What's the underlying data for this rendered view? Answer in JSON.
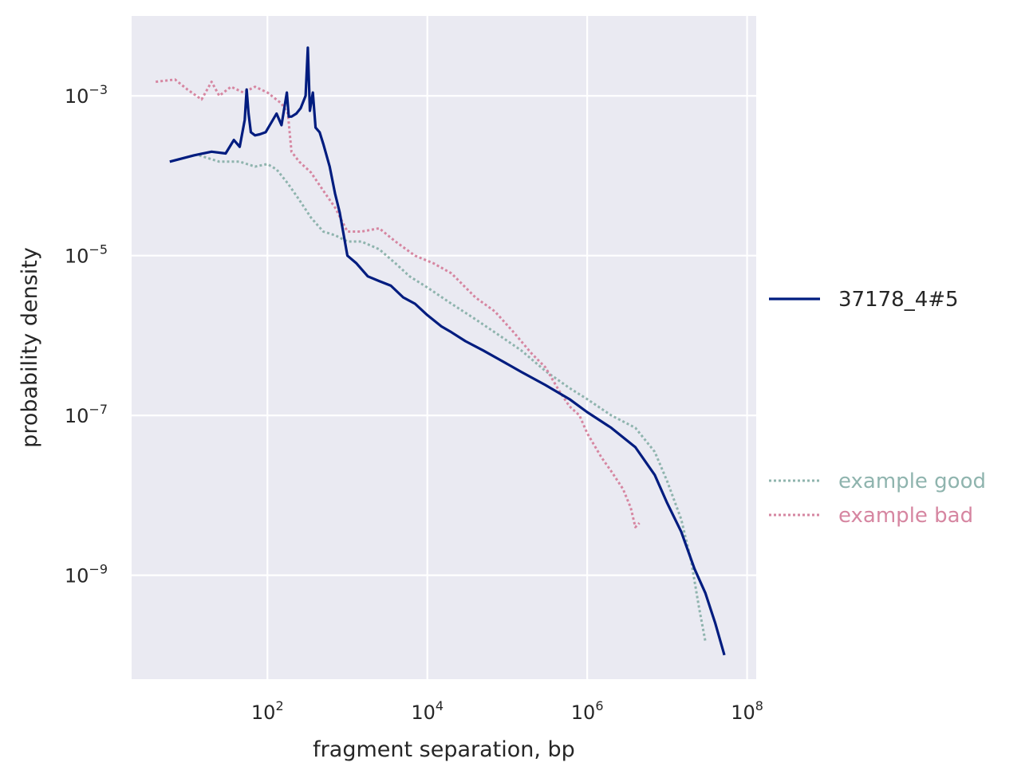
{
  "chart_data": {
    "type": "line",
    "title": "",
    "xlabel": "fragment separation, bp",
    "ylabel": "probability density",
    "x_scale": "log",
    "y_scale": "log",
    "xlim": [
      2.0,
      130000000
    ],
    "ylim": [
      5e-11,
      0.01
    ],
    "xticks": [
      {
        "value": 100,
        "base": "10",
        "exp": "2"
      },
      {
        "value": 10000,
        "base": "10",
        "exp": "4"
      },
      {
        "value": 1000000,
        "base": "10",
        "exp": "6"
      },
      {
        "value": 100000000,
        "base": "10",
        "exp": "8"
      }
    ],
    "yticks": [
      {
        "value": 0.001,
        "base": "10",
        "exp": "−3"
      },
      {
        "value": 1e-05,
        "base": "10",
        "exp": "−5"
      },
      {
        "value": 1e-07,
        "base": "10",
        "exp": "−7"
      },
      {
        "value": 1e-09,
        "base": "10",
        "exp": "−9"
      }
    ],
    "grid": true,
    "background": "#eaeaf2",
    "series": [
      {
        "name": "37178_4#5",
        "color": "#001c7f",
        "style": "solid",
        "legend_group": "top",
        "points": [
          [
            6,
            0.00015
          ],
          [
            12,
            0.00018
          ],
          [
            20,
            0.0002
          ],
          [
            30,
            0.00019
          ],
          [
            38,
            0.00028
          ],
          [
            45,
            0.00023
          ],
          [
            52,
            0.0005
          ],
          [
            55,
            0.0012
          ],
          [
            58,
            0.0006
          ],
          [
            62,
            0.00035
          ],
          [
            70,
            0.00032
          ],
          [
            80,
            0.00033
          ],
          [
            95,
            0.00035
          ],
          [
            110,
            0.00045
          ],
          [
            130,
            0.0006
          ],
          [
            150,
            0.00043
          ],
          [
            175,
            0.0011
          ],
          [
            185,
            0.00055
          ],
          [
            200,
            0.00055
          ],
          [
            230,
            0.0006
          ],
          [
            260,
            0.0007
          ],
          [
            300,
            0.001
          ],
          [
            320,
            0.004
          ],
          [
            340,
            0.00065
          ],
          [
            370,
            0.0011
          ],
          [
            400,
            0.0004
          ],
          [
            450,
            0.00035
          ],
          [
            500,
            0.00025
          ],
          [
            600,
            0.00013
          ],
          [
            700,
            6e-05
          ],
          [
            800,
            3.5e-05
          ],
          [
            1000,
            1e-05
          ],
          [
            1300,
            8e-06
          ],
          [
            1800,
            5.5e-06
          ],
          [
            2500,
            4.8e-06
          ],
          [
            3500,
            4.2e-06
          ],
          [
            5000,
            3e-06
          ],
          [
            7000,
            2.5e-06
          ],
          [
            10000,
            1.8e-06
          ],
          [
            15000,
            1.3e-06
          ],
          [
            20000,
            1.1e-06
          ],
          [
            30000,
            8.5e-07
          ],
          [
            50000,
            6.5e-07
          ],
          [
            80000,
            5e-07
          ],
          [
            150000,
            3.5e-07
          ],
          [
            300000,
            2.4e-07
          ],
          [
            600000,
            1.6e-07
          ],
          [
            1000000,
            1.1e-07
          ],
          [
            2000000,
            7e-08
          ],
          [
            4000000,
            4e-08
          ],
          [
            7000000,
            1.8e-08
          ],
          [
            10000000,
            8e-09
          ],
          [
            15000000,
            3.5e-09
          ],
          [
            22000000,
            1.2e-09
          ],
          [
            30000000,
            6e-10
          ],
          [
            40000000,
            2.5e-10
          ],
          [
            52000000,
            1e-10
          ]
        ]
      },
      {
        "name": "example good",
        "color": "#8fb4ae",
        "style": "dotted",
        "legend_group": "bottom",
        "points": [
          [
            14,
            0.00018
          ],
          [
            25,
            0.00015
          ],
          [
            45,
            0.00015
          ],
          [
            70,
            0.00013
          ],
          [
            100,
            0.00014
          ],
          [
            130,
            0.00012
          ],
          [
            180,
            8e-05
          ],
          [
            250,
            5e-05
          ],
          [
            350,
            3e-05
          ],
          [
            500,
            2e-05
          ],
          [
            700,
            1.8e-05
          ],
          [
            1000,
            1.5e-05
          ],
          [
            1500,
            1.5e-05
          ],
          [
            2500,
            1.2e-05
          ],
          [
            4000,
            8e-06
          ],
          [
            6000,
            5.5e-06
          ],
          [
            10000,
            4e-06
          ],
          [
            20000,
            2.5e-06
          ],
          [
            40000,
            1.6e-06
          ],
          [
            80000,
            1e-06
          ],
          [
            150000,
            6.5e-07
          ],
          [
            300000,
            3.6e-07
          ],
          [
            600000,
            2.2e-07
          ],
          [
            1000000,
            1.6e-07
          ],
          [
            2000000,
            1e-07
          ],
          [
            4000000,
            7e-08
          ],
          [
            7000000,
            3.5e-08
          ],
          [
            10000000,
            1.5e-08
          ],
          [
            15000000,
            5e-09
          ],
          [
            20000000,
            1.5e-09
          ],
          [
            25000000,
            4e-10
          ],
          [
            30000000,
            1.5e-10
          ]
        ]
      },
      {
        "name": "example bad",
        "color": "#d686a1",
        "style": "dotted",
        "legend_group": "bottom",
        "points": [
          [
            4,
            0.0015
          ],
          [
            7,
            0.0016
          ],
          [
            10,
            0.0012
          ],
          [
            15,
            0.0009
          ],
          [
            20,
            0.0015
          ],
          [
            25,
            0.001
          ],
          [
            35,
            0.0013
          ],
          [
            50,
            0.0011
          ],
          [
            70,
            0.0013
          ],
          [
            100,
            0.0011
          ],
          [
            150,
            0.0008
          ],
          [
            180,
            0.0006
          ],
          [
            200,
            0.0002
          ],
          [
            250,
            0.00015
          ],
          [
            350,
            0.00011
          ],
          [
            500,
            6.5e-05
          ],
          [
            700,
            4e-05
          ],
          [
            1000,
            2e-05
          ],
          [
            1500,
            2e-05
          ],
          [
            2500,
            2.2e-05
          ],
          [
            4000,
            1.5e-05
          ],
          [
            7000,
            1e-05
          ],
          [
            12000,
            8e-06
          ],
          [
            20000,
            6e-06
          ],
          [
            40000,
            3e-06
          ],
          [
            70000,
            2e-06
          ],
          [
            120000,
            1.1e-06
          ],
          [
            200000,
            6e-07
          ],
          [
            300000,
            4e-07
          ],
          [
            450000,
            2e-07
          ],
          [
            600000,
            1.3e-07
          ],
          [
            800000,
            1e-07
          ],
          [
            1000000,
            6e-08
          ],
          [
            1500000,
            3e-08
          ],
          [
            2000000,
            2e-08
          ],
          [
            2800000,
            1.2e-08
          ],
          [
            3500000,
            7e-09
          ],
          [
            4000000,
            4e-09
          ],
          [
            4500000,
            4.5e-09
          ]
        ]
      }
    ]
  }
}
